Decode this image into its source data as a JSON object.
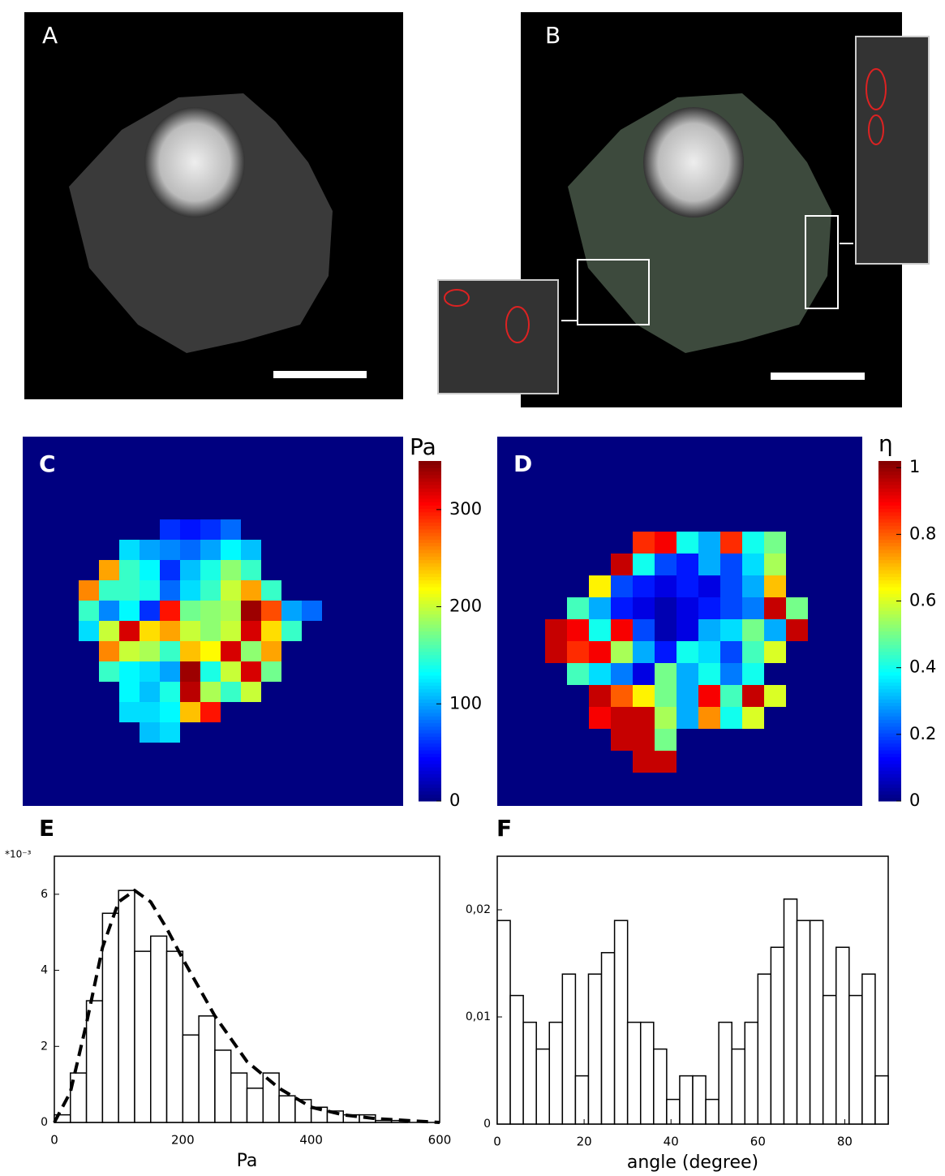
{
  "images": [
    {
      "label": "A"
    },
    {
      "label": "B"
    }
  ],
  "chart_data": [
    {
      "type": "heatmap",
      "label": "C",
      "colorbar_label": "Pa",
      "zlim": [
        0,
        350
      ],
      "zticks": [
        0,
        100,
        200,
        300
      ],
      "values": [
        [
          null,
          null,
          null,
          null,
          60,
          50,
          60,
          80,
          null,
          null,
          null,
          null
        ],
        [
          null,
          null,
          120,
          100,
          90,
          80,
          100,
          130,
          110,
          null,
          null,
          null
        ],
        [
          null,
          250,
          150,
          130,
          60,
          110,
          140,
          180,
          150,
          null,
          null,
          null
        ],
        [
          260,
          150,
          150,
          140,
          80,
          120,
          150,
          200,
          250,
          150,
          null,
          null
        ],
        [
          150,
          90,
          130,
          60,
          300,
          170,
          180,
          190,
          340,
          280,
          100,
          80
        ],
        [
          120,
          200,
          320,
          230,
          250,
          200,
          180,
          200,
          320,
          230,
          150,
          null
        ],
        [
          null,
          260,
          200,
          190,
          150,
          240,
          220,
          320,
          180,
          250,
          null,
          null
        ],
        [
          null,
          150,
          130,
          120,
          100,
          340,
          140,
          200,
          320,
          170,
          null,
          null
        ],
        [
          null,
          null,
          130,
          110,
          140,
          330,
          190,
          150,
          200,
          null,
          null,
          null
        ],
        [
          null,
          null,
          120,
          120,
          130,
          240,
          300,
          null,
          null,
          null,
          null,
          null
        ],
        [
          null,
          null,
          null,
          110,
          120,
          null,
          null,
          null,
          null,
          null,
          null,
          null
        ]
      ]
    },
    {
      "type": "heatmap",
      "label": "D",
      "colorbar_label": "η",
      "zlim": [
        0,
        1.02
      ],
      "zticks": [
        0,
        0.2,
        0.4,
        0.6,
        0.8,
        1
      ],
      "values": [
        [
          null,
          null,
          null,
          null,
          0.85,
          0.9,
          0.4,
          0.3,
          0.85,
          0.4,
          0.5,
          null
        ],
        [
          null,
          null,
          null,
          0.95,
          0.4,
          0.2,
          0.15,
          0.3,
          0.2,
          0.35,
          0.55,
          null
        ],
        [
          null,
          null,
          0.65,
          0.2,
          0.15,
          0.1,
          0.15,
          0.1,
          0.2,
          0.3,
          0.7,
          null
        ],
        [
          null,
          0.45,
          0.3,
          0.15,
          0.1,
          0.05,
          0.1,
          0.15,
          0.2,
          0.25,
          0.95,
          0.5
        ],
        [
          0.95,
          0.9,
          0.4,
          0.9,
          0.2,
          0.05,
          0.1,
          0.3,
          0.35,
          0.5,
          0.3,
          0.95
        ],
        [
          0.95,
          0.85,
          0.9,
          0.55,
          0.3,
          0.15,
          0.4,
          0.35,
          0.2,
          0.45,
          0.6,
          null
        ],
        [
          null,
          0.45,
          0.35,
          0.25,
          0.1,
          0.5,
          0.3,
          0.4,
          0.25,
          0.4,
          null,
          null
        ],
        [
          null,
          null,
          0.95,
          0.8,
          0.65,
          0.5,
          0.3,
          0.9,
          0.45,
          0.95,
          0.6,
          null
        ],
        [
          null,
          null,
          0.9,
          0.95,
          0.95,
          0.55,
          0.3,
          0.75,
          0.4,
          0.6,
          null,
          null
        ],
        [
          null,
          null,
          null,
          0.95,
          0.95,
          0.5,
          null,
          null,
          null,
          null,
          null,
          null
        ],
        [
          null,
          null,
          null,
          null,
          0.95,
          0.95,
          null,
          null,
          null,
          null,
          null,
          null
        ]
      ]
    },
    {
      "type": "histogram",
      "label": "E",
      "xlabel": "Pa",
      "y_multiplier": "*10⁻³",
      "bins": [
        0,
        25,
        50,
        75,
        100,
        125,
        150,
        175,
        200,
        225,
        250,
        275,
        300,
        325,
        350,
        375,
        400,
        425,
        450,
        475,
        500,
        525,
        550,
        575,
        600
      ],
      "counts": [
        0.2,
        1.3,
        3.2,
        5.5,
        6.1,
        4.5,
        4.9,
        4.5,
        2.3,
        2.8,
        1.9,
        1.3,
        0.9,
        1.3,
        0.7,
        0.6,
        0.4,
        0.3,
        0.2,
        0.2,
        0.05,
        0.05,
        0,
        0
      ],
      "fit": {
        "x": [
          0,
          25,
          50,
          75,
          100,
          125,
          150,
          175,
          200,
          250,
          300,
          350,
          400,
          450,
          500,
          600
        ],
        "y": [
          0,
          0.8,
          2.6,
          4.6,
          5.8,
          6.1,
          5.8,
          5.1,
          4.3,
          2.8,
          1.6,
          0.9,
          0.4,
          0.2,
          0.1,
          0
        ]
      },
      "xlim": [
        0,
        600
      ],
      "ylim": [
        0,
        7
      ],
      "xticks": [
        0,
        200,
        400,
        600
      ],
      "yticks": [
        0,
        2,
        4,
        6
      ]
    },
    {
      "type": "histogram",
      "label": "F",
      "xlabel": "angle (degree)",
      "bins": [
        0,
        3,
        6,
        9,
        12,
        15,
        18,
        21,
        24,
        27,
        30,
        33,
        36,
        39,
        42,
        45,
        48,
        51,
        54,
        57,
        60,
        63,
        66,
        69,
        72,
        75,
        78,
        81,
        84,
        87,
        90
      ],
      "counts": [
        0.019,
        0.012,
        0.0095,
        0.007,
        0.0095,
        0.014,
        0.0045,
        0.014,
        0.016,
        0.019,
        0.0095,
        0.0095,
        0.007,
        0.0023,
        0.0045,
        0.0045,
        0.0023,
        0.0095,
        0.007,
        0.0095,
        0.014,
        0.0165,
        0.021,
        0.019,
        0.019,
        0.012,
        0.0165,
        0.012,
        0.014,
        0.0045
      ],
      "xlim": [
        0,
        90
      ],
      "ylim": [
        0,
        0.025
      ],
      "xticks": [
        0,
        20,
        40,
        60,
        80
      ],
      "yticks": [
        0,
        {
          "value": 0.01,
          "label": "0,01"
        },
        {
          "value": 0.02,
          "label": "0,02"
        }
      ]
    }
  ]
}
